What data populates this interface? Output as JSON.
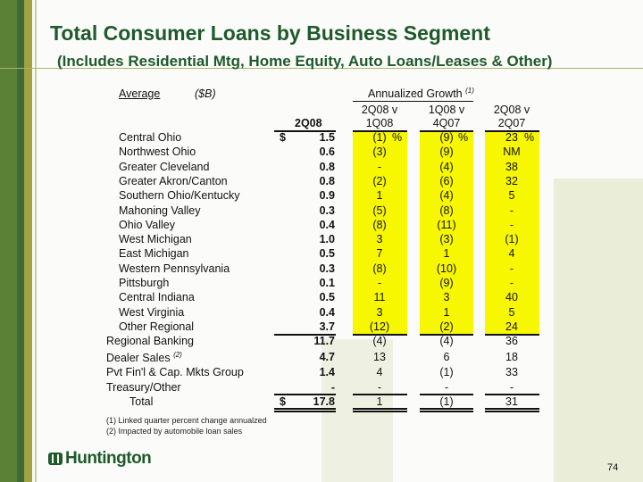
{
  "title": "Total Consumer Loans by Business Segment",
  "subtitle": "(Includes Residential Mtg, Home Equity, Auto Loans/Leases & Other)",
  "header": {
    "average": "Average",
    "unit": "($B)",
    "growth": "Annualized Growth",
    "growth_note": "(1)",
    "col0": "2Q08",
    "col1a": "2Q08 v",
    "col1b": "1Q08",
    "col2a": "1Q08 v",
    "col2b": "4Q07",
    "col3a": "2Q08 v",
    "col3b": "2Q07",
    "dollar": "$",
    "pct": "%"
  },
  "rows": [
    {
      "label": "Central Ohio",
      "value": "1.5",
      "g1": "(1)",
      "g2": "(9)",
      "g3": "23"
    },
    {
      "label": "Northwest Ohio",
      "value": "0.6",
      "g1": "(3)",
      "g2": "(9)",
      "g3": "NM"
    },
    {
      "label": "Greater Cleveland",
      "value": "0.8",
      "g1": "-",
      "g2": "(4)",
      "g3": "38"
    },
    {
      "label": "Greater Akron/Canton",
      "value": "0.8",
      "g1": "(2)",
      "g2": "(6)",
      "g3": "32"
    },
    {
      "label": "Southern Ohio/Kentucky",
      "value": "0.9",
      "g1": "1",
      "g2": "(4)",
      "g3": "5"
    },
    {
      "label": "Mahoning Valley",
      "value": "0.3",
      "g1": "(5)",
      "g2": "(8)",
      "g3": "-"
    },
    {
      "label": "Ohio Valley",
      "value": "0.4",
      "g1": "(8)",
      "g2": "(11)",
      "g3": "-"
    },
    {
      "label": "West Michigan",
      "value": "1.0",
      "g1": "3",
      "g2": "(3)",
      "g3": "(1)"
    },
    {
      "label": "East Michigan",
      "value": "0.5",
      "g1": "7",
      "g2": "1",
      "g3": "4"
    },
    {
      "label": "Western Pennsylvania",
      "value": "0.3",
      "g1": "(8)",
      "g2": "(10)",
      "g3": "-"
    },
    {
      "label": "Pittsburgh",
      "value": "0.1",
      "g1": "-",
      "g2": "(9)",
      "g3": "-"
    },
    {
      "label": "Central Indiana",
      "value": "0.5",
      "g1": "11",
      "g2": "3",
      "g3": "40"
    },
    {
      "label": "West Virginia",
      "value": "0.4",
      "g1": "3",
      "g2": "1",
      "g3": "5"
    },
    {
      "label": "Other Regional",
      "value": "3.7",
      "g1": "(12)",
      "g2": "(2)",
      "g3": "24"
    }
  ],
  "summary": [
    {
      "label": "Regional Banking",
      "value": "11.7",
      "g1": "(4)",
      "g2": "(4)",
      "g3": "36"
    },
    {
      "label": "Dealer Sales",
      "note": "(2)",
      "value": "4.7",
      "g1": "13",
      "g2": "6",
      "g3": "18"
    },
    {
      "label": "Pvt Fin'l & Cap. Mkts Group",
      "value": "1.4",
      "g1": "4",
      "g2": "(1)",
      "g3": "33"
    },
    {
      "label": "Treasury/Other",
      "value": "-",
      "g1": "-",
      "g2": "-",
      "g3": "-"
    }
  ],
  "total": {
    "label": "Total",
    "value": "17.8",
    "g1": "1",
    "g2": "(1)",
    "g3": "31"
  },
  "footnotes": [
    "(1)  Linked quarter percent change annualzed",
    "(2)  Impacted by automobile loan sales"
  ],
  "logo": "Huntington",
  "page_number": "74"
}
